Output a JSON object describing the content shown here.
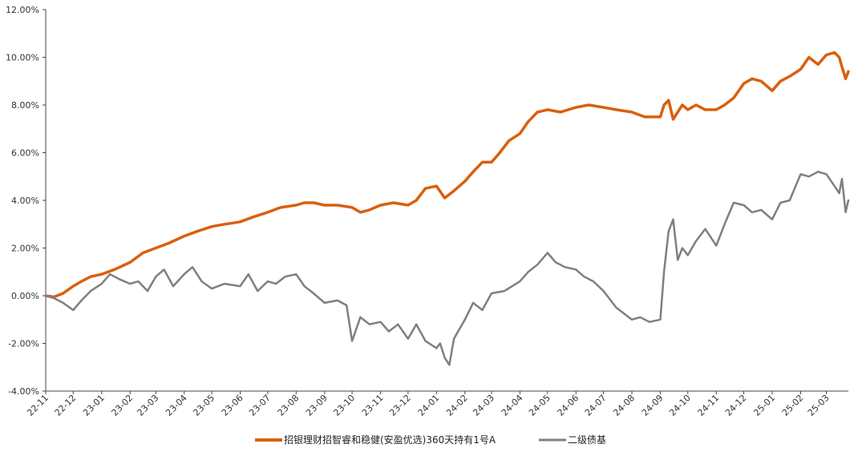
{
  "chart_data": {
    "type": "line",
    "title": "",
    "xlabel": "",
    "ylabel": "",
    "ylim": [
      -4,
      12
    ],
    "y_ticks": [
      -4,
      -2,
      0,
      2,
      4,
      6,
      8,
      10,
      12
    ],
    "y_tick_labels": [
      "-4.00%",
      "-2.00%",
      "0.00%",
      "2.00%",
      "4.00%",
      "6.00%",
      "8.00%",
      "10.00%",
      "12.00%"
    ],
    "x_ticks": [
      "2022-11-01",
      "2022-12-01",
      "2023-01-01",
      "2023-02-01",
      "2023-03-01",
      "2023-04-01",
      "2023-05-01",
      "2023-06-01",
      "2023-07-01",
      "2023-08-01",
      "2023-09-01",
      "2023-10-01",
      "2023-11-01",
      "2023-12-01",
      "2024-01-01",
      "2024-02-01",
      "2024-03-01",
      "2024-04-01",
      "2024-05-01",
      "2024-06-01",
      "2024-07-01",
      "2024-08-01",
      "2024-09-01",
      "2024-10-01",
      "2024-11-01",
      "2024-12-01",
      "2025-01-01",
      "2025-02-01",
      "2025-03-01"
    ],
    "x_tick_labels": [
      "22-11",
      "22-12",
      "23-01",
      "23-02",
      "23-03",
      "23-04",
      "23-05",
      "23-06",
      "23-07",
      "23-08",
      "23-09",
      "23-10",
      "23-11",
      "23-12",
      "24-01",
      "24-02",
      "24-03",
      "24-04",
      "24-05",
      "24-06",
      "24-07",
      "24-08",
      "24-09",
      "24-10",
      "24-11",
      "24-12",
      "25-01",
      "25-02",
      "25-03"
    ],
    "x_range": [
      "2022-11-01",
      "2025-03-25"
    ],
    "grid": false,
    "legend_position": "bottom",
    "series": [
      {
        "name": "招银理财招智睿和稳健(安盈优选)360天持有1号A",
        "color": "#D95F0E",
        "x": [
          "2022-11-01",
          "2022-11-10",
          "2022-11-20",
          "2022-12-01",
          "2022-12-10",
          "2022-12-20",
          "2023-01-01",
          "2023-01-15",
          "2023-02-01",
          "2023-02-15",
          "2023-03-01",
          "2023-03-15",
          "2023-04-01",
          "2023-04-15",
          "2023-05-01",
          "2023-05-15",
          "2023-06-01",
          "2023-06-15",
          "2023-07-01",
          "2023-07-15",
          "2023-08-01",
          "2023-08-10",
          "2023-08-20",
          "2023-09-01",
          "2023-09-15",
          "2023-10-01",
          "2023-10-10",
          "2023-10-20",
          "2023-11-01",
          "2023-11-15",
          "2023-12-01",
          "2023-12-10",
          "2023-12-20",
          "2024-01-01",
          "2024-01-10",
          "2024-01-20",
          "2024-02-01",
          "2024-02-10",
          "2024-02-20",
          "2024-03-01",
          "2024-03-10",
          "2024-03-20",
          "2024-04-01",
          "2024-04-10",
          "2024-04-20",
          "2024-05-01",
          "2024-05-15",
          "2024-06-01",
          "2024-06-15",
          "2024-07-01",
          "2024-07-15",
          "2024-08-01",
          "2024-08-15",
          "2024-09-01",
          "2024-09-05",
          "2024-09-10",
          "2024-09-15",
          "2024-09-25",
          "2024-10-01",
          "2024-10-10",
          "2024-10-20",
          "2024-11-01",
          "2024-11-10",
          "2024-11-20",
          "2024-12-01",
          "2024-12-10",
          "2024-12-20",
          "2025-01-01",
          "2025-01-10",
          "2025-01-20",
          "2025-02-01",
          "2025-02-10",
          "2025-02-20",
          "2025-03-01",
          "2025-03-10",
          "2025-03-15",
          "2025-03-18",
          "2025-03-22",
          "2025-03-25"
        ],
        "values": [
          0.0,
          -0.05,
          0.1,
          0.4,
          0.6,
          0.8,
          0.9,
          1.1,
          1.4,
          1.8,
          2.0,
          2.2,
          2.5,
          2.7,
          2.9,
          3.0,
          3.1,
          3.3,
          3.5,
          3.7,
          3.8,
          3.9,
          3.9,
          3.8,
          3.8,
          3.7,
          3.5,
          3.6,
          3.8,
          3.9,
          3.8,
          4.0,
          4.5,
          4.6,
          4.1,
          4.4,
          4.8,
          5.2,
          5.6,
          5.6,
          6.0,
          6.5,
          6.8,
          7.3,
          7.7,
          7.8,
          7.7,
          7.9,
          8.0,
          7.9,
          7.8,
          7.7,
          7.5,
          7.5,
          8.0,
          8.2,
          7.4,
          8.0,
          7.8,
          8.0,
          7.8,
          7.8,
          8.0,
          8.3,
          8.9,
          9.1,
          9.0,
          8.6,
          9.0,
          9.2,
          9.5,
          10.0,
          9.7,
          10.1,
          10.2,
          10.0,
          9.6,
          9.1,
          9.4
        ]
      },
      {
        "name": "二级债基",
        "color": "#7F7F7F",
        "x": [
          "2022-11-01",
          "2022-11-10",
          "2022-11-20",
          "2022-12-01",
          "2022-12-10",
          "2022-12-20",
          "2023-01-01",
          "2023-01-10",
          "2023-01-20",
          "2023-02-01",
          "2023-02-10",
          "2023-02-20",
          "2023-03-01",
          "2023-03-10",
          "2023-03-20",
          "2023-04-01",
          "2023-04-10",
          "2023-04-20",
          "2023-05-01",
          "2023-05-15",
          "2023-06-01",
          "2023-06-10",
          "2023-06-20",
          "2023-07-01",
          "2023-07-10",
          "2023-07-20",
          "2023-08-01",
          "2023-08-10",
          "2023-08-20",
          "2023-09-01",
          "2023-09-15",
          "2023-09-25",
          "2023-10-01",
          "2023-10-10",
          "2023-10-20",
          "2023-11-01",
          "2023-11-10",
          "2023-11-20",
          "2023-12-01",
          "2023-12-10",
          "2023-12-20",
          "2024-01-01",
          "2024-01-05",
          "2024-01-10",
          "2024-01-15",
          "2024-01-20",
          "2024-02-01",
          "2024-02-10",
          "2024-02-20",
          "2024-03-01",
          "2024-03-15",
          "2024-04-01",
          "2024-04-10",
          "2024-04-20",
          "2024-05-01",
          "2024-05-10",
          "2024-05-20",
          "2024-06-01",
          "2024-06-10",
          "2024-06-20",
          "2024-07-01",
          "2024-07-15",
          "2024-08-01",
          "2024-08-10",
          "2024-08-20",
          "2024-09-01",
          "2024-09-05",
          "2024-09-10",
          "2024-09-15",
          "2024-09-20",
          "2024-09-25",
          "2024-10-01",
          "2024-10-10",
          "2024-10-20",
          "2024-11-01",
          "2024-11-10",
          "2024-11-20",
          "2024-12-01",
          "2024-12-10",
          "2024-12-20",
          "2025-01-01",
          "2025-01-10",
          "2025-01-20",
          "2025-02-01",
          "2025-02-10",
          "2025-02-20",
          "2025-03-01",
          "2025-03-10",
          "2025-03-15",
          "2025-03-18",
          "2025-03-22",
          "2025-03-25"
        ],
        "values": [
          0.0,
          -0.1,
          -0.3,
          -0.6,
          -0.2,
          0.2,
          0.5,
          0.9,
          0.7,
          0.5,
          0.6,
          0.2,
          0.8,
          1.1,
          0.4,
          0.9,
          1.2,
          0.6,
          0.3,
          0.5,
          0.4,
          0.9,
          0.2,
          0.6,
          0.5,
          0.8,
          0.9,
          0.4,
          0.1,
          -0.3,
          -0.2,
          -0.4,
          -1.9,
          -0.9,
          -1.2,
          -1.1,
          -1.5,
          -1.2,
          -1.8,
          -1.2,
          -1.9,
          -2.2,
          -2.0,
          -2.6,
          -2.9,
          -1.8,
          -1.0,
          -0.3,
          -0.6,
          0.1,
          0.2,
          0.6,
          1.0,
          1.3,
          1.8,
          1.4,
          1.2,
          1.1,
          0.8,
          0.6,
          0.2,
          -0.5,
          -1.0,
          -0.9,
          -1.1,
          -1.0,
          1.0,
          2.7,
          3.2,
          1.5,
          2.0,
          1.7,
          2.3,
          2.8,
          2.1,
          3.0,
          3.9,
          3.8,
          3.5,
          3.6,
          3.2,
          3.9,
          4.0,
          5.1,
          5.0,
          5.2,
          5.1,
          4.6,
          4.3,
          4.9,
          3.5,
          4.0
        ]
      }
    ]
  }
}
